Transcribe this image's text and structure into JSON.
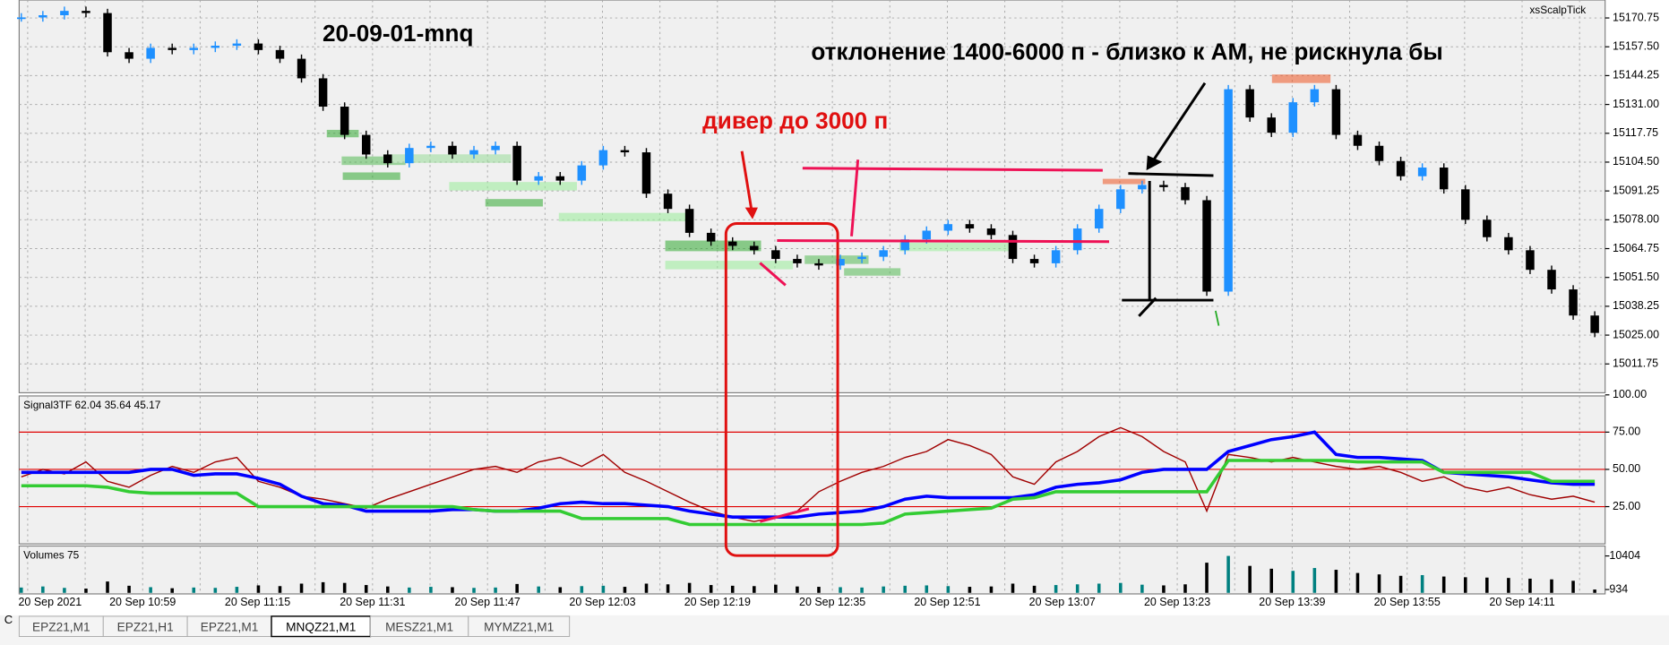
{
  "chart_data": {
    "type": "candlestick",
    "title": "20-09-01-mnq",
    "indicator_name": "xsScalpTick",
    "annotations": [
      "отклонение 1400-6000 п - близко к АМ, не рискнула бы",
      "дивер до 3000 п"
    ],
    "categories": [
      "20 Sep 2021",
      "20 Sep 10:59",
      "20 Sep 11:15",
      "20 Sep 11:31",
      "20 Sep 11:47",
      "20 Sep 12:03",
      "20 Sep 12:19",
      "20 Sep 12:35",
      "20 Sep 12:51",
      "20 Sep 13:07",
      "20 Sep 13:23",
      "20 Sep 13:39",
      "20 Sep 13:55",
      "20 Sep 14:11"
    ],
    "closes": [
      15171,
      15172,
      15174,
      15173,
      15155,
      15152,
      15157,
      15156,
      15157,
      15158,
      15159,
      15156,
      15152,
      15143,
      15130,
      15117,
      15108,
      15104,
      15111,
      15112,
      15108,
      15110,
      15112,
      15096,
      15098,
      15096,
      15103,
      15110,
      15109,
      15090,
      15083,
      15072,
      15068,
      15066,
      15064,
      15060,
      15058,
      15057,
      15060,
      15061,
      15064,
      15069,
      15073,
      15076,
      15074,
      15071,
      15060,
      15058,
      15064,
      15074,
      15083,
      15092,
      15094,
      15093,
      15087,
      15045,
      15138,
      15125,
      15118,
      15132,
      15138,
      15117,
      15112,
      15105,
      15098,
      15102,
      15092,
      15078,
      15070,
      15064,
      15055,
      15046,
      15034,
      15026
    ],
    "up_color": "#1e90ff",
    "down_color": "#000000",
    "ylim": [
      14999,
      15179
    ],
    "yticks": [
      15170.75,
      {
        "value": 15157.5,
        "label": "15157.50"
      },
      15144.25,
      {
        "value": 15131,
        "label": "15131.00"
      },
      15117.75,
      {
        "value": 15104.5,
        "label": "15104.50"
      },
      15091.25,
      {
        "value": 15078,
        "label": "15078.00"
      },
      15064.75,
      {
        "value": 15051.5,
        "label": "15051.50"
      },
      15038.25,
      {
        "value": 15025,
        "label": "15025.00"
      },
      15011.75
    ],
    "indicator": {
      "name": "Signal3TF 62.04 35.64 45.17",
      "ylim": [
        0,
        100
      ],
      "yticks": [
        {
          "value": 100,
          "label": "100.00"
        },
        {
          "value": 75,
          "label": "75.00"
        },
        {
          "value": 50,
          "label": "50.00"
        },
        {
          "value": 25,
          "label": "25.00"
        }
      ],
      "levels": [
        75,
        50,
        25
      ],
      "level_color": "#e00000",
      "series": [
        {
          "color": "#a00000",
          "values": [
            45,
            50,
            47,
            55,
            42,
            38,
            46,
            52,
            48,
            55,
            58,
            42,
            38,
            32,
            30,
            27,
            24,
            30,
            35,
            40,
            45,
            50,
            52,
            48,
            55,
            58,
            52,
            60,
            48,
            42,
            35,
            28,
            22,
            18,
            15,
            18,
            22,
            35,
            42,
            48,
            52,
            58,
            62,
            70,
            66,
            60,
            45,
            40,
            55,
            62,
            72,
            78,
            72,
            62,
            55,
            22,
            60,
            58,
            55,
            58,
            55,
            52,
            50,
            52,
            48,
            42,
            45,
            38,
            35,
            38,
            33,
            30,
            32,
            28
          ]
        },
        {
          "color": "#0000ff",
          "values": [
            48,
            48,
            48,
            48,
            48,
            48,
            50,
            50,
            46,
            47,
            47,
            44,
            40,
            32,
            27,
            26,
            22,
            22,
            22,
            22,
            23,
            23,
            22,
            22,
            24,
            27,
            28,
            27,
            27,
            26,
            25,
            22,
            20,
            18,
            18,
            18,
            18,
            20,
            21,
            22,
            25,
            30,
            32,
            31,
            31,
            31,
            31,
            33,
            38,
            40,
            41,
            43,
            48,
            50,
            50,
            50,
            62,
            66,
            70,
            72,
            75,
            60,
            58,
            58,
            57,
            56,
            48,
            47,
            46,
            45,
            43,
            41,
            40,
            40
          ]
        },
        {
          "color": "#33cc33",
          "values": [
            39,
            39,
            39,
            39,
            38,
            35,
            34,
            34,
            34,
            34,
            34,
            25,
            25,
            25,
            25,
            25,
            25,
            25,
            25,
            25,
            25,
            23,
            22,
            22,
            22,
            22,
            17,
            17,
            17,
            17,
            17,
            13,
            13,
            13,
            13,
            13,
            13,
            13,
            13,
            13,
            14,
            20,
            21,
            22,
            23,
            24,
            30,
            31,
            35,
            35,
            35,
            35,
            35,
            35,
            35,
            35,
            56,
            56,
            56,
            56,
            56,
            56,
            55,
            55,
            55,
            55,
            48,
            48,
            48,
            48,
            48,
            42,
            42,
            42
          ]
        }
      ]
    },
    "volume": {
      "name": "Volumes 75",
      "ylim": [
        0,
        12000
      ],
      "yticks": [
        10404,
        934
      ],
      "up_color": "#008080",
      "down_color": "#000000",
      "values": [
        1500,
        1800,
        1400,
        1200,
        3200,
        2000,
        1600,
        1300,
        1500,
        1400,
        1700,
        2100,
        1900,
        2600,
        3000,
        2800,
        2200,
        1800,
        1500,
        1700,
        1600,
        1400,
        1500,
        2500,
        1800,
        1600,
        1900,
        2000,
        1700,
        2600,
        2400,
        2800,
        2200,
        2000,
        1900,
        2300,
        1800,
        1700,
        1600,
        1500,
        1800,
        2000,
        2100,
        1900,
        1700,
        1800,
        2600,
        2000,
        2200,
        2400,
        2600,
        2800,
        2300,
        2100,
        2400,
        8500,
        10404,
        7600,
        6800,
        6200,
        7000,
        6500,
        5600,
        5200,
        4800,
        5000,
        4600,
        4400,
        4300,
        4200,
        4000,
        3800,
        3400,
        934
      ]
    }
  },
  "tabs": [
    "EPZ21,M1",
    "EPZ21,H1",
    "EPZ21,M1",
    "MNQZ21,M1",
    "MESZ21,M1",
    "MYMZ21,M1"
  ],
  "corner_label": "C"
}
